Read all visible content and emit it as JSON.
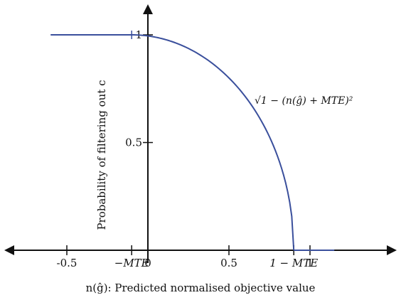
{
  "chart_data": {
    "type": "line",
    "title": "",
    "xlabel": "n(ĝ): Predicted normalised objective value",
    "ylabel": "Probability of filtering out c",
    "mte_value": 0.1,
    "xlim": [
      -0.7,
      1.2
    ],
    "ylim": [
      0,
      1.1
    ],
    "x_ticks": [
      {
        "value": -0.5,
        "label": "-0.5",
        "style": "normal"
      },
      {
        "value": -0.1,
        "label": "−MTE",
        "style": "math"
      },
      {
        "value": 0,
        "label": "0",
        "style": "normal"
      },
      {
        "value": 0.5,
        "label": "0.5",
        "style": "normal"
      },
      {
        "value": 0.9,
        "label": "1 − MTE",
        "style": "math"
      },
      {
        "value": 1,
        "label": "1",
        "style": "normal"
      }
    ],
    "y_ticks": [
      {
        "value": 0.5,
        "label": "0.5"
      },
      {
        "value": 1,
        "label": "1"
      }
    ],
    "series": [
      {
        "color": "#3a4f9c",
        "segments": [
          {
            "kind": "constant",
            "x": [
              -0.6,
              -0.1
            ],
            "y": 1
          },
          {
            "kind": "quarter_circle",
            "x": [
              -0.1,
              0.9
            ],
            "formula": "√(1 − (n(ĝ) + MTE)²)"
          },
          {
            "kind": "constant",
            "x": [
              0.9,
              1.15
            ],
            "y": 0
          }
        ]
      }
    ],
    "curve_label": "√1 − (n(ĝ) + MTE)²",
    "grid": false,
    "legend": "none"
  }
}
